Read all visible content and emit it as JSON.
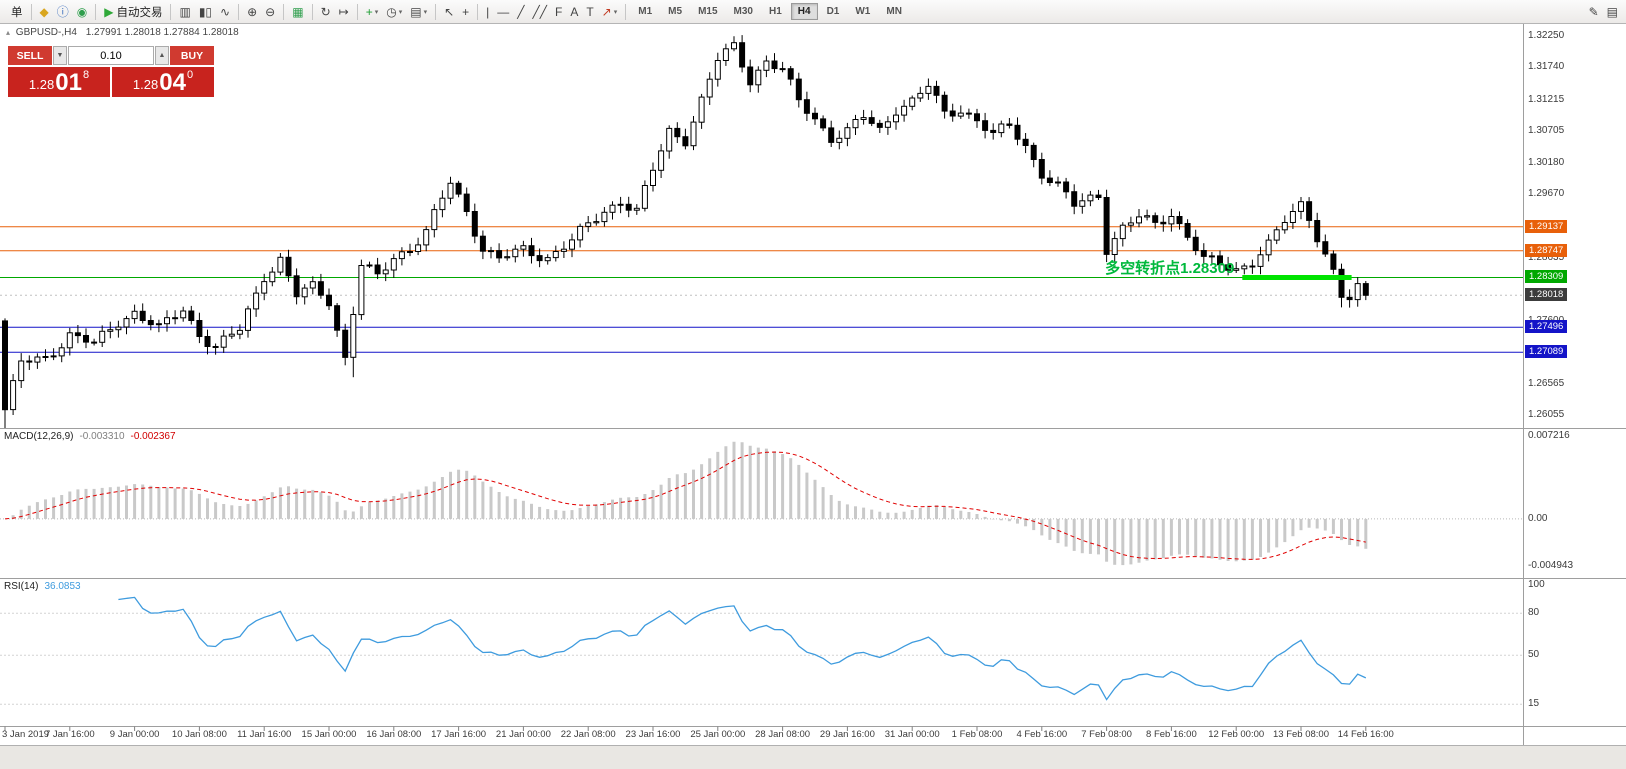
{
  "colors": {
    "orange_line": "#E8600A",
    "green_line": "#00A800",
    "green_bright": "#00E400",
    "annotation_green": "#00B93C",
    "blue_line": "#1414C8",
    "price_tag_dark": "#3C3C3C",
    "macd_hist": "#C9C9C9",
    "macd_signal": "#E00000",
    "rsi_line": "#3E9BDE"
  },
  "toolbar": {
    "groups": [
      {
        "items": [
          {
            "name": "new-order",
            "label": "单"
          }
        ]
      },
      {
        "items": [
          {
            "name": "market-watch",
            "glyph": "◆",
            "color": "#D9A61F"
          },
          {
            "name": "data-window",
            "glyph": "ⓘ",
            "color": "#3D6FBE"
          },
          {
            "name": "navigator",
            "glyph": "◉",
            "color": "#2E9E4C"
          }
        ]
      },
      {
        "items": [
          {
            "name": "autotrading",
            "glyph": "▶",
            "label": "自动交易",
            "color": "#2FA838"
          }
        ]
      },
      {
        "items": [
          {
            "name": "bar-chart",
            "glyph": "▥",
            "color": "#444444"
          },
          {
            "name": "candlestick-chart",
            "glyph": "▮▯",
            "color": "#444444"
          },
          {
            "name": "line-chart",
            "glyph": "∿",
            "color": "#444444"
          }
        ]
      },
      {
        "items": [
          {
            "name": "zoom-in",
            "glyph": "⊕",
            "color": "#444444"
          },
          {
            "name": "zoom-out",
            "glyph": "⊖",
            "color": "#444444"
          }
        ]
      },
      {
        "items": [
          {
            "name": "tile-windows",
            "glyph": "▦",
            "color": "#2E9E4C"
          }
        ]
      },
      {
        "items": [
          {
            "name": "auto-scroll",
            "glyph": "↻",
            "color": "#444444"
          },
          {
            "name": "chart-shift",
            "glyph": "↦",
            "color": "#444444"
          }
        ]
      },
      {
        "items": [
          {
            "name": "indicators-add",
            "glyph": "+",
            "color": "#1F9E33",
            "dropdown": true
          },
          {
            "name": "periods",
            "glyph": "◷",
            "color": "#444444",
            "dropdown": true
          },
          {
            "name": "templates",
            "glyph": "▤",
            "color": "#444444",
            "dropdown": true
          }
        ]
      },
      {
        "items": [
          {
            "name": "cursor",
            "glyph": "↖",
            "color": "#444444"
          },
          {
            "name": "crosshair",
            "glyph": "+",
            "color": "#444444"
          }
        ]
      },
      {
        "items": [
          {
            "name": "vertical-line",
            "glyph": "|",
            "color": "#444444"
          },
          {
            "name": "horizontal-line",
            "glyph": "—",
            "color": "#444444"
          },
          {
            "name": "trendline",
            "glyph": "╱",
            "color": "#444444"
          },
          {
            "name": "channel",
            "glyph": "╱╱",
            "color": "#444444"
          },
          {
            "name": "fibonacci",
            "glyph": "F",
            "color": "#444444"
          },
          {
            "name": "text",
            "glyph": "A",
            "color": "#444444"
          },
          {
            "name": "label",
            "glyph": "T",
            "color": "#444444"
          },
          {
            "name": "arrows",
            "glyph": "↗",
            "color": "#C23B22",
            "dropdown": true
          }
        ]
      }
    ],
    "timeframes": [
      {
        "label": "M1"
      },
      {
        "label": "M5"
      },
      {
        "label": "M15"
      },
      {
        "label": "M30"
      },
      {
        "label": "H1"
      },
      {
        "label": "H4",
        "active": true
      },
      {
        "label": "D1"
      },
      {
        "label": "W1"
      },
      {
        "label": "MN"
      }
    ],
    "right_items": [
      {
        "name": "pencil",
        "glyph": "✎",
        "color": "#444444"
      },
      {
        "name": "panel",
        "glyph": "▤",
        "color": "#444444"
      }
    ]
  },
  "chart_header": {
    "collapse_glyph": "▴",
    "symbol": "GBPUSD-,H4",
    "ohlc": "1.27991 1.28018 1.27884 1.28018"
  },
  "quote_panel": {
    "sell_label": "SELL",
    "buy_label": "BUY",
    "volume": "0.10",
    "volume_down_glyph": "▼",
    "volume_up_glyph": "▲",
    "sell_price": {
      "big": "1.28",
      "mid": "01",
      "sup": "8"
    },
    "buy_price": {
      "big": "1.28",
      "mid": "04",
      "sup": "0"
    }
  },
  "annotation": {
    "text": "多空转折点1.28309",
    "color": "#00B93C"
  },
  "chart_data": {
    "type": "candlestick",
    "symbol": "GBPUSD-",
    "timeframe": "H4",
    "bar_count": 169,
    "label_step_bars": 8,
    "first_open": 1.276,
    "close_anchors": [
      [
        0,
        1.2615
      ],
      [
        2,
        1.269
      ],
      [
        5,
        1.27
      ],
      [
        8,
        1.2738
      ],
      [
        11,
        1.272
      ],
      [
        14,
        1.276
      ],
      [
        16,
        1.2775
      ],
      [
        19,
        1.2745
      ],
      [
        22,
        1.278
      ],
      [
        24,
        1.274
      ],
      [
        26,
        1.2715
      ],
      [
        29,
        1.2745
      ],
      [
        32,
        1.2835
      ],
      [
        34,
        1.286
      ],
      [
        36,
        1.28
      ],
      [
        38,
        1.2815
      ],
      [
        40,
        1.2795
      ],
      [
        42,
        1.27
      ],
      [
        44,
        1.285
      ],
      [
        46,
        1.283
      ],
      [
        48,
        1.2865
      ],
      [
        50,
        1.288
      ],
      [
        52,
        1.2905
      ],
      [
        55,
        1.2985
      ],
      [
        57,
        1.294
      ],
      [
        59,
        1.288
      ],
      [
        61,
        1.286
      ],
      [
        64,
        1.2875
      ],
      [
        67,
        1.2865
      ],
      [
        70,
        1.289
      ],
      [
        72,
        1.2915
      ],
      [
        74,
        1.294
      ],
      [
        76,
        1.2958
      ],
      [
        78,
        1.2938
      ],
      [
        80,
        1.3005
      ],
      [
        82,
        1.307
      ],
      [
        84,
        1.3058
      ],
      [
        86,
        1.312
      ],
      [
        88,
        1.3185
      ],
      [
        90,
        1.3208
      ],
      [
        92,
        1.3155
      ],
      [
        94,
        1.3185
      ],
      [
        96,
        1.3168
      ],
      [
        98,
        1.3118
      ],
      [
        100,
        1.3092
      ],
      [
        102,
        1.306
      ],
      [
        104,
        1.3068
      ],
      [
        106,
        1.3092
      ],
      [
        108,
        1.3072
      ],
      [
        110,
        1.3108
      ],
      [
        112,
        1.3118
      ],
      [
        114,
        1.3142
      ],
      [
        116,
        1.3098
      ],
      [
        118,
        1.3108
      ],
      [
        120,
        1.3088
      ],
      [
        122,
        1.3062
      ],
      [
        124,
        1.3078
      ],
      [
        126,
        1.3048
      ],
      [
        128,
        1.3002
      ],
      [
        130,
        1.2978
      ],
      [
        132,
        1.2948
      ],
      [
        134,
        1.2962
      ],
      [
        135,
        1.2968
      ],
      [
        136,
        1.288
      ],
      [
        138,
        1.291
      ],
      [
        140,
        1.2928
      ],
      [
        142,
        1.2918
      ],
      [
        144,
        1.2938
      ],
      [
        146,
        1.2898
      ],
      [
        148,
        1.2858
      ],
      [
        150,
        1.2852
      ],
      [
        152,
        1.2846
      ],
      [
        154,
        1.2858
      ],
      [
        156,
        1.2882
      ],
      [
        158,
        1.2922
      ],
      [
        160,
        1.2952
      ],
      [
        161,
        1.2932
      ],
      [
        162,
        1.29
      ],
      [
        163,
        1.2868
      ],
      [
        164,
        1.2838
      ],
      [
        165,
        1.2798
      ],
      [
        166,
        1.2792
      ],
      [
        167,
        1.2812
      ],
      [
        168,
        1.28018
      ]
    ],
    "overrides": {
      "0": {
        "low": 1.257
      },
      "43": {
        "low": 1.2668
      },
      "90": {
        "high": 1.3225
      },
      "136": {
        "low": 1.2856
      },
      "165": {
        "low": 1.2782
      },
      "168": {
        "close": 1.28018
      }
    },
    "price_ticks": [
      {
        "v": 1.3225,
        "t": "1.32250"
      },
      {
        "v": 1.3174,
        "t": "1.31740"
      },
      {
        "v": 1.31215,
        "t": "1.31215"
      },
      {
        "v": 1.30705,
        "t": "1.30705"
      },
      {
        "v": 1.3018,
        "t": "1.30180"
      },
      {
        "v": 1.2967,
        "t": "1.29670"
      },
      {
        "v": 1.28635,
        "t": "1.28635"
      },
      {
        "v": 1.276,
        "t": "1.27600"
      },
      {
        "v": 1.26565,
        "t": "1.26565"
      },
      {
        "v": 1.26055,
        "t": "1.26055"
      }
    ],
    "hlines": [
      {
        "price": 1.29137,
        "label": "1.29137",
        "color": "#E8600A"
      },
      {
        "price": 1.28747,
        "label": "1.28747",
        "color": "#E8600A"
      },
      {
        "price": 1.28309,
        "label": "1.28309",
        "color": "#00A800"
      },
      {
        "price": 1.27496,
        "label": "1.27496",
        "color": "#1414C8"
      },
      {
        "price": 1.27089,
        "label": "1.27089",
        "color": "#1414C8"
      }
    ],
    "green_segment": {
      "price": 1.28309,
      "bar_start": 153,
      "bar_end": 166,
      "color": "#00E400"
    },
    "current_price": {
      "price": 1.28018,
      "label": "1.28018",
      "bg": "#3C3C3C"
    },
    "time_labels": [
      "3 Jan 2019",
      "7 Jan 16:00",
      "9 Jan 00:00",
      "10 Jan 08:00",
      "11 Jan 16:00",
      "15 Jan 00:00",
      "16 Jan 08:00",
      "17 Jan 16:00",
      "21 Jan 00:00",
      "22 Jan 08:00",
      "23 Jan 16:00",
      "25 Jan 00:00",
      "28 Jan 08:00",
      "29 Jan 16:00",
      "31 Jan 00:00",
      "1 Feb 08:00",
      "4 Feb 16:00",
      "7 Feb 08:00",
      "8 Feb 16:00",
      "12 Feb 00:00",
      "13 Feb 08:00",
      "14 Feb 16:00"
    ],
    "macd": {
      "label": "MACD(12,26,9)",
      "value_main": "-0.003310",
      "value_signal": "-0.002367",
      "fast": 12,
      "slow": 26,
      "signal": 9,
      "axis": {
        "top": "0.007216",
        "zero": "0.00",
        "bottom": "-0.004943"
      }
    },
    "rsi": {
      "label": "RSI(14)",
      "value": "36.0853",
      "period": 14,
      "levels": [
        {
          "v": 100,
          "t": "100",
          "line": false
        },
        {
          "v": 80,
          "t": "80",
          "line": true
        },
        {
          "v": 50,
          "t": "50",
          "line": true
        },
        {
          "v": 15,
          "t": "15",
          "line": true
        }
      ]
    }
  }
}
